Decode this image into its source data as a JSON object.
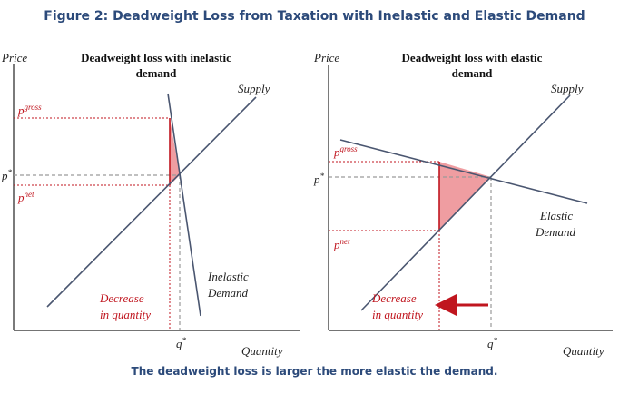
{
  "figure": {
    "title": "Figure 2: Deadweight Loss from Taxation with Inelastic and Elastic Demand",
    "caption": "The deadweight loss is larger the more elastic the demand."
  },
  "colors": {
    "title": "#2c4a7a",
    "axis": "#222222",
    "curve": "#4a5670",
    "red": "#c0161f",
    "dwl_fill": "#ef9da1",
    "dash_gray": "#9a9a9a"
  },
  "left_panel": {
    "heading_line1": "Deadweight loss with inelastic",
    "heading_line2": "demand",
    "y_axis_label": "Price",
    "x_axis_label": "Quantity",
    "supply_label": "Supply",
    "demand_label_line1": "Inelastic",
    "demand_label_line2": "Demand",
    "p_gross": {
      "base": "p",
      "sup": "gross"
    },
    "p_net": {
      "base": "p",
      "sup": "net"
    },
    "p_star": {
      "base": "p",
      "sup": "*"
    },
    "q_star": {
      "base": "q",
      "sup": "*"
    },
    "decrease_line1": "Decrease",
    "decrease_line2": "in quantity"
  },
  "right_panel": {
    "heading_line1": "Deadweight loss with elastic",
    "heading_line2": "demand",
    "y_axis_label": "Price",
    "x_axis_label": "Quantity",
    "supply_label": "Supply",
    "demand_label_line1": "Elastic",
    "demand_label_line2": "Demand",
    "p_gross": {
      "base": "p",
      "sup": "gross"
    },
    "p_net": {
      "base": "p",
      "sup": "net"
    },
    "p_star": {
      "base": "p",
      "sup": "*"
    },
    "q_star": {
      "base": "q",
      "sup": "*"
    },
    "decrease_line1": "Decrease",
    "decrease_line2": "in quantity"
  }
}
